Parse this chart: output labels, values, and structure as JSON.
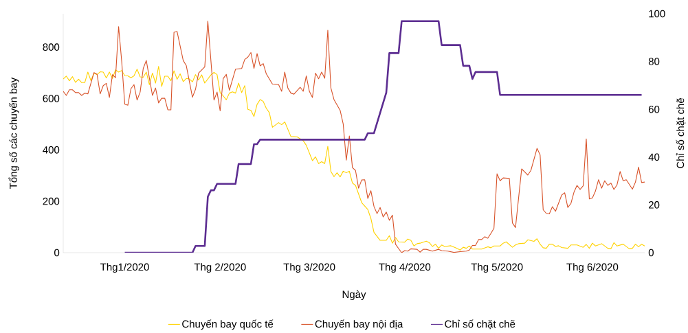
{
  "chart_data": {
    "type": "line",
    "xlabel": "Ngày",
    "ylabel": "Tổng số các chuyến bay",
    "y2label": "Chỉ số chặt chẽ",
    "legend": "bottom",
    "marker": "none",
    "xticks": [
      {
        "value": "2020-01-01",
        "label": "Thg1/2020"
      },
      {
        "value": "2020-02-01",
        "label": "Thg 2/2020"
      },
      {
        "value": "2020-03-01",
        "label": "Thg 3/2020"
      },
      {
        "value": "2020-04-01",
        "label": "Thg 4/2020"
      },
      {
        "value": "2020-05-01",
        "label": "Thg 5/2020"
      },
      {
        "value": "2020-06-01",
        "label": "Thg 6/2020"
      }
    ],
    "xlim": [
      "2019-12-12",
      "2020-06-18"
    ],
    "ylim": [
      0,
      930
    ],
    "yticks": [
      0,
      200,
      400,
      600,
      800
    ],
    "y2lim": [
      0,
      100
    ],
    "y2ticks": [
      0,
      20,
      40,
      60,
      80,
      100
    ],
    "series": [
      {
        "name": "Chuyến bay quốc tế",
        "color": "#ffd200",
        "x": [
          "2019-12-12",
          "2019-12-13",
          "2019-12-14",
          "2019-12-15",
          "2019-12-16",
          "2019-12-17",
          "2019-12-18",
          "2019-12-19",
          "2019-12-20",
          "2019-12-21",
          "2019-12-22",
          "2019-12-23",
          "2019-12-24",
          "2019-12-25",
          "2019-12-26",
          "2019-12-27",
          "2019-12-28",
          "2019-12-29",
          "2019-12-30",
          "2019-12-31",
          "2020-01-01",
          "2020-01-02",
          "2020-01-03",
          "2020-01-04",
          "2020-01-05",
          "2020-01-06",
          "2020-01-07",
          "2020-01-08",
          "2020-01-09",
          "2020-01-10",
          "2020-01-11",
          "2020-01-12",
          "2020-01-13",
          "2020-01-14",
          "2020-01-15",
          "2020-01-16",
          "2020-01-17",
          "2020-01-18",
          "2020-01-19",
          "2020-01-20",
          "2020-01-21",
          "2020-01-22",
          "2020-01-23",
          "2020-01-24",
          "2020-01-25",
          "2020-01-26",
          "2020-01-27",
          "2020-01-29",
          "2020-01-30",
          "2020-01-31",
          "2020-02-01",
          "2020-02-02",
          "2020-02-03",
          "2020-02-04",
          "2020-02-05",
          "2020-02-06",
          "2020-02-07",
          "2020-02-08",
          "2020-02-09",
          "2020-02-10",
          "2020-02-11",
          "2020-02-12",
          "2020-02-13",
          "2020-02-14",
          "2020-02-15",
          "2020-02-16",
          "2020-02-17",
          "2020-02-18",
          "2020-02-20",
          "2020-02-21",
          "2020-02-22",
          "2020-02-24",
          "2020-02-26",
          "2020-02-28",
          "2020-02-29",
          "2020-03-02",
          "2020-03-03",
          "2020-03-04",
          "2020-03-05",
          "2020-03-06",
          "2020-03-07",
          "2020-03-08",
          "2020-03-09",
          "2020-03-10",
          "2020-03-11",
          "2020-03-12",
          "2020-03-13",
          "2020-03-14",
          "2020-03-15",
          "2020-03-16",
          "2020-03-18",
          "2020-03-20",
          "2020-03-21",
          "2020-03-22",
          "2020-03-24",
          "2020-03-26",
          "2020-03-27",
          "2020-03-28",
          "2020-03-29",
          "2020-03-30",
          "2020-04-01",
          "2020-04-02",
          "2020-04-03",
          "2020-04-04",
          "2020-04-05",
          "2020-04-06",
          "2020-04-08",
          "2020-04-09",
          "2020-04-10",
          "2020-04-11",
          "2020-04-12",
          "2020-04-13",
          "2020-04-14",
          "2020-04-16",
          "2020-04-18",
          "2020-04-19",
          "2020-04-20",
          "2020-04-21",
          "2020-04-22",
          "2020-04-23",
          "2020-04-26",
          "2020-04-28",
          "2020-04-29",
          "2020-04-30",
          "2020-05-02",
          "2020-05-03",
          "2020-05-04",
          "2020-05-06",
          "2020-05-07",
          "2020-05-08",
          "2020-05-10",
          "2020-05-11",
          "2020-05-13",
          "2020-05-14",
          "2020-05-15",
          "2020-05-16",
          "2020-05-17",
          "2020-05-18",
          "2020-05-19",
          "2020-05-20",
          "2020-05-21",
          "2020-05-22",
          "2020-05-24",
          "2020-05-25",
          "2020-05-27",
          "2020-05-29",
          "2020-05-30",
          "2020-05-31",
          "2020-06-01",
          "2020-06-02",
          "2020-06-04",
          "2020-06-06",
          "2020-06-07",
          "2020-06-08",
          "2020-06-09",
          "2020-06-11",
          "2020-06-13",
          "2020-06-14",
          "2020-06-15",
          "2020-06-16",
          "2020-06-17",
          "2020-06-18"
        ],
        "values": [
          676,
          687,
          669,
          685,
          663,
          675,
          662,
          662,
          703,
          670,
          699,
          693,
          704,
          703,
          680,
          703,
          678,
          712,
          703,
          709,
          689,
          688,
          681,
          688,
          714,
          684,
          683,
          703,
          654,
          699,
          660,
          725,
          647,
          687,
          687,
          669,
          708,
          675,
          696,
          666,
          678,
          676,
          665,
          693,
          672,
          692,
          660,
          692,
          702,
          693,
          623,
          610,
          595,
          621,
          626,
          621,
          660,
          623,
          650,
          558,
          554,
          530,
          577,
          596,
          589,
          562,
          545,
          488,
          506,
          498,
          509,
          452,
          451,
          436,
          418,
          358,
          373,
          347,
          354,
          347,
          414,
          316,
          296,
          311,
          295,
          317,
          311,
          317,
          271,
          262,
          195,
          168,
          133,
          79,
          48,
          48,
          66,
          37,
          59,
          42,
          41,
          53,
          48,
          26,
          35,
          37,
          45,
          39,
          24,
          33,
          17,
          30,
          24,
          27,
          17,
          10,
          21,
          17,
          26,
          14,
          14,
          23,
          19,
          26,
          26,
          37,
          42,
          21,
          30,
          35,
          37,
          50,
          44,
          54,
          33,
          19,
          17,
          33,
          33,
          24,
          27,
          20,
          17,
          30,
          30,
          21,
          32,
          17,
          37,
          26,
          35,
          17,
          15,
          39,
          26,
          33,
          15,
          17,
          33,
          23,
          33,
          26
        ]
      },
      {
        "name": "Chuyến bay nội địa",
        "color": "#d8532a",
        "x": [
          "2019-12-12",
          "2019-12-13",
          "2019-12-14",
          "2019-12-15",
          "2019-12-16",
          "2019-12-17",
          "2019-12-18",
          "2019-12-19",
          "2019-12-20",
          "2019-12-21",
          "2019-12-22",
          "2019-12-23",
          "2019-12-24",
          "2019-12-25",
          "2019-12-26",
          "2019-12-27",
          "2019-12-28",
          "2019-12-29",
          "2019-12-30",
          "2019-12-31",
          "2020-01-01",
          "2020-01-02",
          "2020-01-03",
          "2020-01-04",
          "2020-01-05",
          "2020-01-06",
          "2020-01-07",
          "2020-01-08",
          "2020-01-10",
          "2020-01-11",
          "2020-01-12",
          "2020-01-13",
          "2020-01-14",
          "2020-01-15",
          "2020-01-16",
          "2020-01-17",
          "2020-01-18",
          "2020-01-20",
          "2020-01-21",
          "2020-01-23",
          "2020-01-24",
          "2020-01-25",
          "2020-01-27",
          "2020-01-28",
          "2020-01-30",
          "2020-01-31",
          "2020-02-01",
          "2020-02-02",
          "2020-02-03",
          "2020-02-04",
          "2020-02-06",
          "2020-02-08",
          "2020-02-09",
          "2020-02-10",
          "2020-02-11",
          "2020-02-12",
          "2020-02-13",
          "2020-02-14",
          "2020-02-15",
          "2020-02-16",
          "2020-02-18",
          "2020-02-20",
          "2020-02-21",
          "2020-02-22",
          "2020-02-23",
          "2020-02-24",
          "2020-02-25",
          "2020-02-27",
          "2020-02-28",
          "2020-02-29",
          "2020-03-01",
          "2020-03-02",
          "2020-03-03",
          "2020-03-04",
          "2020-03-05",
          "2020-03-06",
          "2020-03-07",
          "2020-03-08",
          "2020-03-09",
          "2020-03-11",
          "2020-03-12",
          "2020-03-13",
          "2020-03-14",
          "2020-03-15",
          "2020-03-16",
          "2020-03-17",
          "2020-03-18",
          "2020-03-19",
          "2020-03-20",
          "2020-03-21",
          "2020-03-22",
          "2020-03-23",
          "2020-03-24",
          "2020-03-25",
          "2020-03-26",
          "2020-03-27",
          "2020-03-28",
          "2020-03-29",
          "2020-03-30",
          "2020-03-31",
          "2020-04-01",
          "2020-04-02",
          "2020-04-03",
          "2020-04-05",
          "2020-04-06",
          "2020-04-07",
          "2020-04-08",
          "2020-04-10",
          "2020-04-12",
          "2020-04-13",
          "2020-04-15",
          "2020-04-17",
          "2020-04-19",
          "2020-04-21",
          "2020-04-22",
          "2020-04-23",
          "2020-04-24",
          "2020-04-25",
          "2020-04-26",
          "2020-04-27",
          "2020-04-28",
          "2020-04-29",
          "2020-04-30",
          "2020-05-01",
          "2020-05-02",
          "2020-05-03",
          "2020-05-05",
          "2020-05-06",
          "2020-05-07",
          "2020-05-09",
          "2020-05-11",
          "2020-05-12",
          "2020-05-14",
          "2020-05-15",
          "2020-05-16",
          "2020-05-17",
          "2020-05-18",
          "2020-05-19",
          "2020-05-20",
          "2020-05-22",
          "2020-05-23",
          "2020-05-24",
          "2020-05-25",
          "2020-05-26",
          "2020-05-27",
          "2020-05-28",
          "2020-05-29",
          "2020-05-30",
          "2020-05-31",
          "2020-06-01",
          "2020-06-02",
          "2020-06-03",
          "2020-06-04",
          "2020-06-05",
          "2020-06-06",
          "2020-06-07",
          "2020-06-08",
          "2020-06-09",
          "2020-06-10",
          "2020-06-11",
          "2020-06-12",
          "2020-06-14",
          "2020-06-15",
          "2020-06-16",
          "2020-06-17",
          "2020-06-18"
        ],
        "values": [
          628,
          612,
          634,
          634,
          623,
          623,
          612,
          621,
          618,
          660,
          701,
          694,
          618,
          650,
          659,
          604,
          693,
          681,
          880,
          745,
          578,
          574,
          638,
          654,
          594,
          625,
          717,
          748,
          612,
          641,
          583,
          601,
          601,
          556,
          556,
          858,
          861,
          748,
          728,
          605,
          636,
          699,
          723,
          901,
          594,
          625,
          552,
          678,
          694,
          632,
          714,
          717,
          752,
          761,
          779,
          717,
          775,
          727,
          736,
          696,
          656,
          654,
          628,
          703,
          641,
          621,
          617,
          644,
          628,
          688,
          628,
          604,
          699,
          677,
          703,
          679,
          866,
          641,
          596,
          554,
          501,
          360,
          454,
          331,
          320,
          251,
          283,
          284,
          211,
          241,
          180,
          152,
          176,
          139,
          158,
          126,
          146,
          33,
          16,
          0,
          8,
          6,
          15,
          13,
          2,
          13,
          13,
          6,
          13,
          8,
          6,
          1,
          4,
          6,
          10,
          28,
          28,
          51,
          51,
          62,
          56,
          75,
          95,
          307,
          280,
          291,
          289,
          116,
          98,
          326,
          302,
          320,
          406,
          381,
          167,
          153,
          151,
          179,
          161,
          224,
          233,
          176,
          191,
          235,
          262,
          246,
          260,
          443,
          209,
          213,
          240,
          284,
          251,
          280,
          262,
          271,
          246,
          264,
          316,
          280,
          284,
          247,
          275,
          333,
          273,
          275
        ]
      },
      {
        "name": "Chỉ số chặt chẽ",
        "color": "#5c2d91",
        "axis": "y2",
        "x": [
          "2020-01-01",
          "2020-01-23",
          "2020-01-24",
          "2020-01-27",
          "2020-01-28",
          "2020-01-29",
          "2020-01-30",
          "2020-01-31",
          "2020-02-06",
          "2020-02-07",
          "2020-02-11",
          "2020-02-12",
          "2020-02-13",
          "2020-02-14",
          "2020-03-19",
          "2020-03-20",
          "2020-03-22",
          "2020-03-26",
          "2020-03-27",
          "2020-03-30",
          "2020-03-31",
          "2020-04-12",
          "2020-04-13",
          "2020-04-19",
          "2020-04-20",
          "2020-04-22",
          "2020-04-23",
          "2020-04-24",
          "2020-05-01",
          "2020-05-02",
          "2020-06-17"
        ],
        "values": [
          0,
          0,
          2.8,
          2.8,
          23.4,
          26.1,
          26.1,
          28.8,
          28.8,
          37.1,
          37.1,
          45.4,
          45.4,
          47.3,
          47.3,
          50,
          50,
          67,
          83.5,
          83.5,
          96.9,
          96.9,
          86.9,
          86.9,
          78.2,
          78.2,
          72.7,
          75.6,
          75.6,
          66,
          66
        ]
      }
    ]
  }
}
